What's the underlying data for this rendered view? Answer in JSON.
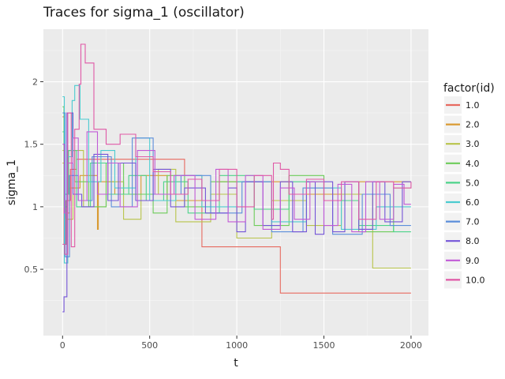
{
  "chart_data": {
    "type": "line",
    "title": "Traces for sigma_1 (oscillator)",
    "xlabel": "t",
    "ylabel": "sigma_1",
    "xlim": [
      -110,
      2100
    ],
    "ylim": [
      -0.03,
      2.42
    ],
    "x_ticks": [
      0,
      500,
      1000,
      1500,
      2000
    ],
    "x_tick_labels": [
      "0",
      "500",
      "1000",
      "1500",
      "2000"
    ],
    "y_ticks": [
      0.5,
      1,
      1.5,
      2
    ],
    "y_tick_labels": [
      "0.5",
      "1",
      "1.5",
      "2"
    ],
    "grid": true,
    "legend_title": "factor(id)",
    "legend_position": "right",
    "background": "#EBEBEB",
    "series": [
      {
        "name": "1.0",
        "color": "#E76A5F",
        "step": true,
        "x": [
          0,
          8,
          20,
          45,
          80,
          150,
          300,
          500,
          700,
          800,
          1000,
          1250,
          2000
        ],
        "y": [
          1.72,
          0.7,
          1.05,
          1.3,
          1.38,
          1.38,
          1.38,
          1.38,
          1.25,
          0.68,
          0.68,
          0.31,
          0.31
        ]
      },
      {
        "name": "2.0",
        "color": "#D99A32",
        "step": true,
        "x": [
          0,
          10,
          40,
          100,
          200,
          205,
          300,
          450,
          600,
          900,
          1300,
          1700,
          2000
        ],
        "y": [
          1.35,
          0.95,
          1.15,
          1.25,
          0.82,
          1.2,
          1.1,
          1.25,
          1.05,
          1.2,
          1.1,
          1.2,
          1.2
        ]
      },
      {
        "name": "3.0",
        "color": "#B8C44A",
        "step": true,
        "x": [
          0,
          12,
          60,
          120,
          250,
          350,
          450,
          550,
          650,
          850,
          1000,
          1200,
          1400,
          1600,
          1780,
          1800,
          2000
        ],
        "y": [
          1.45,
          0.9,
          1.45,
          1.0,
          1.2,
          0.9,
          1.1,
          1.3,
          0.88,
          1.1,
          0.75,
          1.05,
          0.85,
          1.1,
          0.51,
          0.51,
          0.51
        ]
      },
      {
        "name": "4.0",
        "color": "#6DCC5A",
        "step": true,
        "x": [
          0,
          8,
          30,
          70,
          150,
          250,
          350,
          520,
          600,
          700,
          850,
          1100,
          1300,
          1500,
          1700,
          1900,
          2000
        ],
        "y": [
          1.8,
          1.0,
          1.45,
          1.2,
          1.0,
          1.35,
          1.1,
          0.95,
          1.25,
          1.0,
          1.2,
          0.85,
          1.25,
          1.05,
          0.8,
          1.15,
          1.15
        ]
      },
      {
        "name": "5.0",
        "color": "#4CD38A",
        "step": true,
        "x": [
          0,
          10,
          35,
          80,
          160,
          260,
          380,
          480,
          580,
          720,
          900,
          1100,
          1300,
          1500,
          1700,
          1900,
          2000
        ],
        "y": [
          1.6,
          1.1,
          1.45,
          1.0,
          1.35,
          1.1,
          1.25,
          1.05,
          1.2,
          0.95,
          1.25,
          0.98,
          1.2,
          1.05,
          0.85,
          0.8,
          0.8
        ]
      },
      {
        "name": "6.0",
        "color": "#4BCBD0",
        "step": true,
        "x": [
          0,
          10,
          30,
          55,
          70,
          100,
          150,
          220,
          300,
          420,
          500,
          650,
          800,
          1000,
          1200,
          1400,
          1600,
          1800,
          2000
        ],
        "y": [
          1.88,
          0.55,
          1.4,
          1.85,
          1.97,
          1.7,
          1.2,
          1.45,
          1.15,
          1.55,
          1.05,
          1.25,
          1.0,
          1.2,
          0.88,
          1.15,
          0.82,
          1.0,
          1.0
        ]
      },
      {
        "name": "7.0",
        "color": "#5B8EDB",
        "step": true,
        "x": [
          0,
          15,
          40,
          90,
          170,
          280,
          400,
          520,
          680,
          850,
          1030,
          1200,
          1380,
          1550,
          1720,
          1880,
          2000
        ],
        "y": [
          1.75,
          0.6,
          1.25,
          1.05,
          1.4,
          1.0,
          1.55,
          1.1,
          1.25,
          0.95,
          1.2,
          0.8,
          1.15,
          0.78,
          1.1,
          0.85,
          0.85
        ]
      },
      {
        "name": "8.0",
        "color": "#7454D8",
        "step": true,
        "x": [
          0,
          8,
          25,
          60,
          110,
          180,
          260,
          320,
          420,
          520,
          620,
          700,
          820,
          950,
          1000,
          1050,
          1150,
          1250,
          1320,
          1400,
          1450,
          1500,
          1550,
          1620,
          1700,
          1780,
          1850,
          1950,
          2000
        ],
        "y": [
          0.16,
          0.28,
          1.75,
          1.1,
          1.0,
          1.42,
          1.05,
          1.35,
          1.05,
          1.3,
          1.0,
          1.15,
          0.95,
          1.15,
          0.8,
          1.2,
          0.85,
          1.2,
          0.8,
          1.2,
          0.78,
          1.2,
          0.8,
          1.2,
          0.82,
          1.2,
          0.88,
          1.2,
          1.2
        ]
      },
      {
        "name": "9.0",
        "color": "#C15AD6",
        "step": true,
        "x": [
          0,
          10,
          30,
          60,
          90,
          140,
          200,
          260,
          330,
          430,
          530,
          640,
          760,
          880,
          950,
          1050,
          1150,
          1250,
          1330,
          1420,
          1500,
          1580,
          1660,
          1740,
          1820,
          1900,
          1960,
          2000
        ],
        "y": [
          1.5,
          0.95,
          1.35,
          1.55,
          1.05,
          1.6,
          1.1,
          1.35,
          1.0,
          1.45,
          1.1,
          1.25,
          0.9,
          1.3,
          0.88,
          1.25,
          0.82,
          1.15,
          0.9,
          1.2,
          0.85,
          1.18,
          0.8,
          1.2,
          0.9,
          1.18,
          1.02,
          1.02
        ]
      },
      {
        "name": "10.0",
        "color": "#E058A6",
        "step": true,
        "x": [
          0,
          12,
          30,
          50,
          70,
          95,
          105,
          130,
          180,
          250,
          330,
          420,
          520,
          620,
          720,
          800,
          900,
          1000,
          1100,
          1200,
          1210,
          1250,
          1300,
          1400,
          1500,
          1600,
          1700,
          1800,
          1900,
          2000
        ],
        "y": [
          0.7,
          0.62,
          1.75,
          0.68,
          1.62,
          1.98,
          2.3,
          2.15,
          1.62,
          1.5,
          1.58,
          1.4,
          1.28,
          1.1,
          1.22,
          1.05,
          1.3,
          1.0,
          1.25,
          0.9,
          1.35,
          1.3,
          1.1,
          1.22,
          1.05,
          1.2,
          0.9,
          1.2,
          1.15,
          1.2
        ]
      }
    ]
  }
}
